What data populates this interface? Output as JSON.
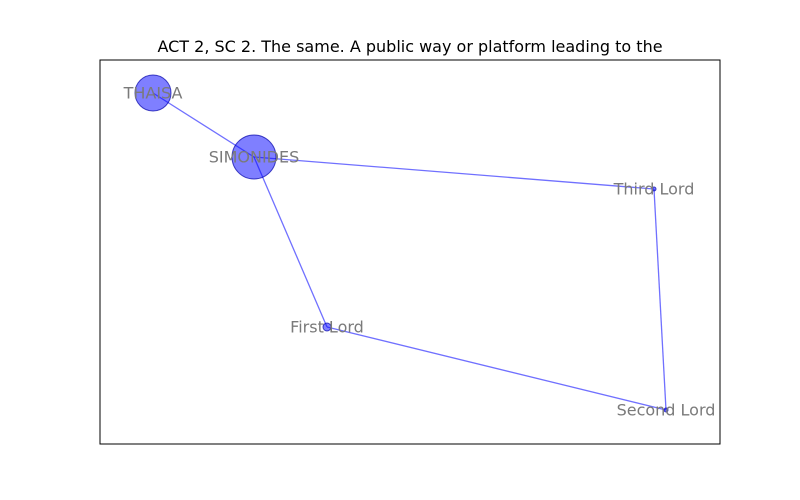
{
  "title": "ACT 2, SC 2. The same. A public way or platform leading to the",
  "colors": {
    "node_fill": "#0000ff",
    "node_stroke": "#0000aa",
    "edge": "#3333ff",
    "label": "#7a7a7a"
  },
  "nodes": [
    {
      "id": "THAISA",
      "label": "THAISA"
    },
    {
      "id": "SIMONIDES",
      "label": "SIMONIDES"
    },
    {
      "id": "Third Lord",
      "label": "Third Lord"
    },
    {
      "id": "First Lord",
      "label": "First Lord"
    },
    {
      "id": "Second Lord",
      "label": "Second Lord"
    }
  ],
  "edges": [
    {
      "source": "THAISA",
      "target": "SIMONIDES"
    },
    {
      "source": "SIMONIDES",
      "target": "Third Lord"
    },
    {
      "source": "SIMONIDES",
      "target": "First Lord"
    },
    {
      "source": "First Lord",
      "target": "Second Lord"
    },
    {
      "source": "Third Lord",
      "target": "Second Lord"
    }
  ]
}
